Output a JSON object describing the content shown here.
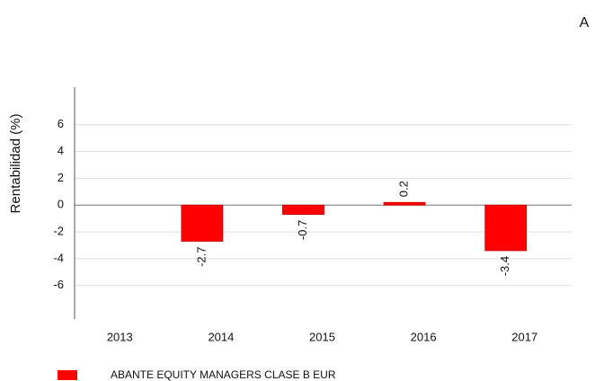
{
  "corner_label": "A",
  "chart_data": {
    "type": "bar",
    "y_label": "Rentabilidad (%)",
    "categories": [
      "2013",
      "2014",
      "2015",
      "2016",
      "2017"
    ],
    "series": [
      {
        "name": "ABANTE EQUITY MANAGERS CLASE B EUR",
        "color": "#ff0000",
        "values": [
          null,
          -2.7,
          -0.7,
          0.2,
          -3.4
        ]
      }
    ],
    "ylim": [
      -8.5,
      8.8
    ],
    "yticks": [
      6,
      4,
      2,
      0,
      -2,
      -4,
      -6
    ],
    "grid": true
  }
}
